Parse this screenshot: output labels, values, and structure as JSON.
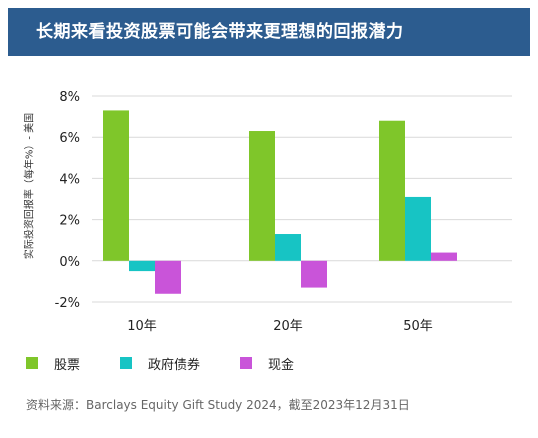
{
  "banner": {
    "title": "长期来看投资股票可能会带来更理想的回报潜力"
  },
  "chart_data": {
    "type": "bar",
    "ylabel": "实际投资回报率（每年%）- 美国",
    "categories": [
      "10年",
      "20年",
      "50年"
    ],
    "series": [
      {
        "name": "股票",
        "color": "#7fc62a",
        "values": [
          7.3,
          6.3,
          6.8
        ]
      },
      {
        "name": "政府债券",
        "color": "#17c4c4",
        "values": [
          -0.5,
          1.3,
          3.1
        ]
      },
      {
        "name": "现金",
        "color": "#c954d9",
        "values": [
          -1.6,
          -1.3,
          0.4
        ]
      }
    ],
    "ylim": [
      -2,
      8
    ],
    "yticks": [
      -2,
      0,
      2,
      4,
      6,
      8
    ],
    "ytick_labels": [
      "-2%",
      "0%",
      "2%",
      "4%",
      "6%",
      "8%"
    ],
    "grid": true,
    "legend": "bottom-left"
  },
  "footer": {
    "source": "资料来源：Barclays Equity Gift Study 2024，截至2023年12月31日"
  }
}
